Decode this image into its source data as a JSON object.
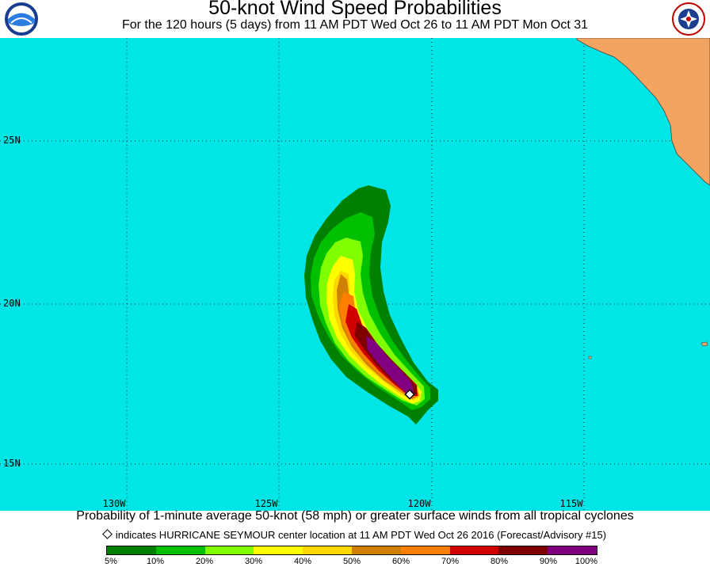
{
  "header": {
    "title": "50-knot Wind Speed Probabilities",
    "subtitle": "For the 120 hours (5 days) from 11 AM PDT Wed Oct 26 to 11 AM PDT Mon Oct 31"
  },
  "logos": {
    "left": "noaa-logo-icon",
    "right": "nws-logo-icon",
    "right_text": "NATIONAL WEATHER SERVICE"
  },
  "map": {
    "ocean_color": "#00e5e5",
    "land_color": "#f4a460",
    "lat_labels": [
      "25N",
      "20N",
      "15N"
    ],
    "lon_labels": [
      "130W",
      "125W",
      "120W",
      "115W"
    ],
    "storm_name": "HURRICANE SEYMOUR",
    "storm_center_icon": "diamond-marker-icon"
  },
  "footer": {
    "line1": "Probability of 1-minute average 50-knot (58 mph) or greater surface winds from all tropical cyclones",
    "line2": "indicates HURRICANE SEYMOUR center location at 11 AM PDT Wed Oct 26 2016 (Forecast/Advisory #15)"
  },
  "legend": {
    "colors": [
      "#008000",
      "#00c000",
      "#80ff00",
      "#ffff00",
      "#ffd700",
      "#d08000",
      "#ff8000",
      "#d00000",
      "#800000",
      "#800080"
    ],
    "labels": [
      "5%",
      "10%",
      "20%",
      "30%",
      "40%",
      "50%",
      "60%",
      "70%",
      "80%",
      "90%",
      "100%"
    ]
  }
}
